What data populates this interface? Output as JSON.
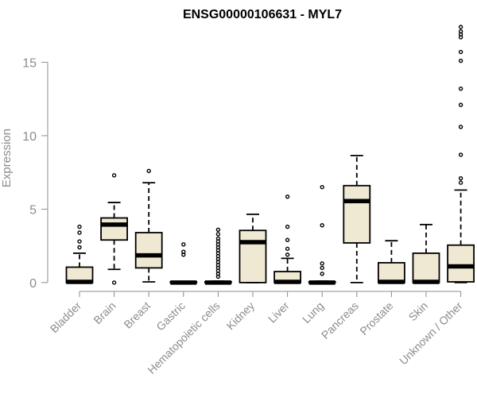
{
  "chart_data": {
    "type": "box",
    "title": "ENSG00000106631 - MYL7",
    "xlabel": "",
    "ylabel": "Expression",
    "ylim": [
      -0.6,
      17.4
    ],
    "yticks": [
      0,
      5,
      10,
      15
    ],
    "box_fill": "#efe8d2",
    "stroke": "#000000",
    "axis_color": "#8c8c8c",
    "categories": [
      "Bladder",
      "Brain",
      "Breast",
      "Gastric",
      "Hematopoietic cells",
      "Kidney",
      "Liver",
      "Lung",
      "Pancreas",
      "Prostate",
      "Skin",
      "Unknown / Other"
    ],
    "boxes": [
      {
        "category": "Bladder",
        "whisker_low": 0,
        "q1": 0,
        "median": 0.05,
        "q3": 1.05,
        "whisker_high": 2.0,
        "outliers": [
          2.4,
          2.8,
          3.4,
          3.8
        ]
      },
      {
        "category": "Brain",
        "whisker_low": 0.9,
        "q1": 2.9,
        "median": 3.95,
        "q3": 4.4,
        "whisker_high": 5.45,
        "outliers": [
          7.3,
          0.0
        ]
      },
      {
        "category": "Breast",
        "whisker_low": 0.05,
        "q1": 1.0,
        "median": 1.85,
        "q3": 3.4,
        "whisker_high": 6.8,
        "outliers": [
          7.6
        ]
      },
      {
        "category": "Gastric",
        "whisker_low": 0,
        "q1": 0,
        "median": 0.0,
        "q3": 0.05,
        "whisker_high": 0.05,
        "outliers": [
          1.9,
          2.1,
          2.6
        ]
      },
      {
        "category": "Hematopoietic cells",
        "whisker_low": 0,
        "q1": 0,
        "median": 0.0,
        "q3": 0.05,
        "whisker_high": 0.1,
        "outliers": [
          0.4,
          0.6,
          0.8,
          1.0,
          1.2,
          1.4,
          1.6,
          1.8,
          2.0,
          2.2,
          2.4,
          2.6,
          2.8,
          3.0,
          3.3,
          3.6
        ]
      },
      {
        "category": "Kidney",
        "whisker_low": 0,
        "q1": 0,
        "median": 2.75,
        "q3": 3.55,
        "whisker_high": 4.65,
        "outliers": []
      },
      {
        "category": "Liver",
        "whisker_low": 0,
        "q1": 0,
        "median": 0.05,
        "q3": 0.75,
        "whisker_high": 1.65,
        "outliers": [
          1.9,
          2.3,
          2.9,
          3.8,
          5.85
        ]
      },
      {
        "category": "Lung",
        "whisker_low": 0,
        "q1": 0,
        "median": 0.0,
        "q3": 0.05,
        "whisker_high": 0.1,
        "outliers": [
          0.6,
          1.0,
          1.3,
          3.9,
          6.5
        ]
      },
      {
        "category": "Pancreas",
        "whisker_low": 0,
        "q1": 2.7,
        "median": 5.55,
        "q3": 6.6,
        "whisker_high": 8.65,
        "outliers": []
      },
      {
        "category": "Prostate",
        "whisker_low": 0,
        "q1": 0,
        "median": 0.05,
        "q3": 1.35,
        "whisker_high": 2.85,
        "outliers": []
      },
      {
        "category": "Skin",
        "whisker_low": 0,
        "q1": 0,
        "median": 0.05,
        "q3": 2.0,
        "whisker_high": 3.95,
        "outliers": []
      },
      {
        "category": "Unknown / Other",
        "whisker_low": 0,
        "q1": 0.05,
        "median": 1.1,
        "q3": 2.55,
        "whisker_high": 6.3,
        "outliers": [
          6.8,
          7.1,
          8.7,
          10.6,
          12.1,
          13.2,
          15.1,
          15.7,
          16.7,
          16.9,
          17.1,
          17.4
        ]
      }
    ]
  }
}
